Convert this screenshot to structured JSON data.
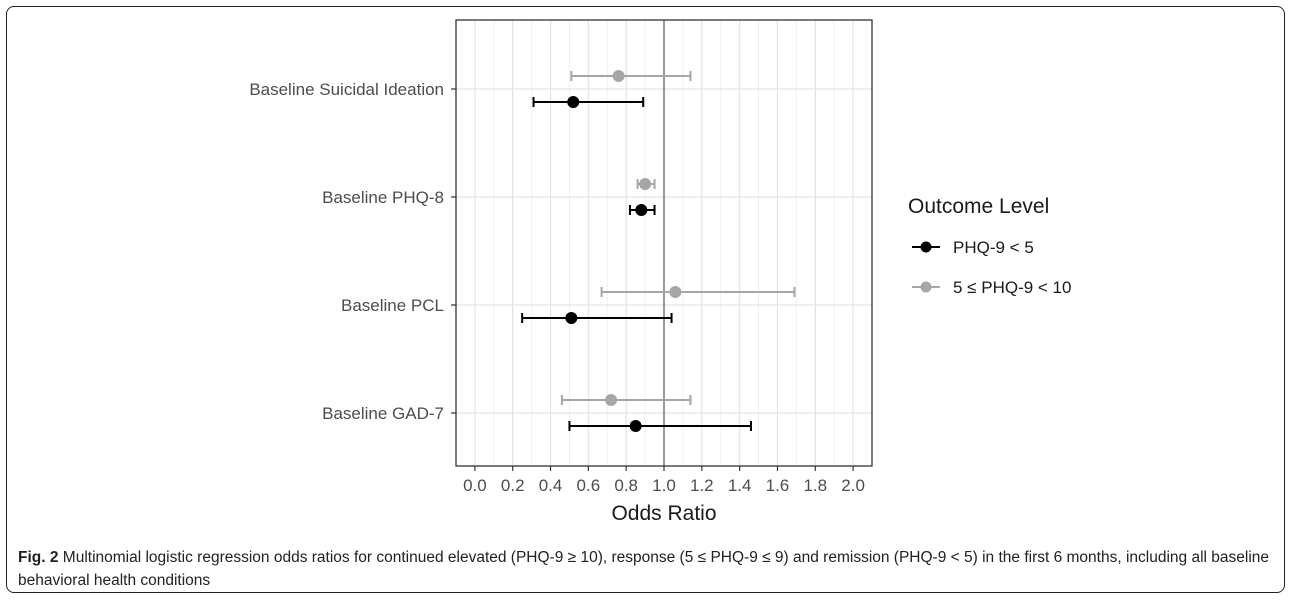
{
  "chart_data": {
    "type": "scatter",
    "subtype": "forest-plot",
    "xlabel": "Odds Ratio",
    "ylabel": "",
    "xlim": [
      -0.1,
      2.1
    ],
    "xticks": [
      0.0,
      0.2,
      0.4,
      0.6,
      0.8,
      1.0,
      1.2,
      1.4,
      1.6,
      1.8,
      2.0
    ],
    "xtick_labels": [
      "0.0",
      "0.2",
      "0.4",
      "0.6",
      "0.8",
      "1.0",
      "1.2",
      "1.4",
      "1.6",
      "1.8",
      "2.0"
    ],
    "reference_line": 1.0,
    "grid": true,
    "categories": [
      "Baseline Suicidal Ideation",
      "Baseline PHQ-8",
      "Baseline PCL",
      "Baseline GAD-7"
    ],
    "legend": {
      "title": "Outcome Level",
      "placement": "right"
    },
    "series": [
      {
        "name": "PHQ-9 < 5",
        "color": "#000000",
        "estimate": [
          0.52,
          0.88,
          0.51,
          0.85
        ],
        "lower": [
          0.31,
          0.82,
          0.25,
          0.5
        ],
        "upper": [
          0.89,
          0.95,
          1.04,
          1.46
        ]
      },
      {
        "name": "5 ≤ PHQ-9 < 10",
        "color": "#a6a6a6",
        "estimate": [
          0.76,
          0.9,
          1.06,
          0.72
        ],
        "lower": [
          0.51,
          0.86,
          0.67,
          0.46
        ],
        "upper": [
          1.14,
          0.95,
          1.69,
          1.14
        ]
      }
    ]
  },
  "caption": {
    "label": "Fig. 2",
    "text": " Multinomial logistic regression odds ratios for continued elevated (PHQ-9 ≥ 10), response (5 ≤ PHQ-9 ≤ 9) and remission (PHQ-9 < 5) in the first 6 months, including all baseline behavioral health conditions"
  }
}
